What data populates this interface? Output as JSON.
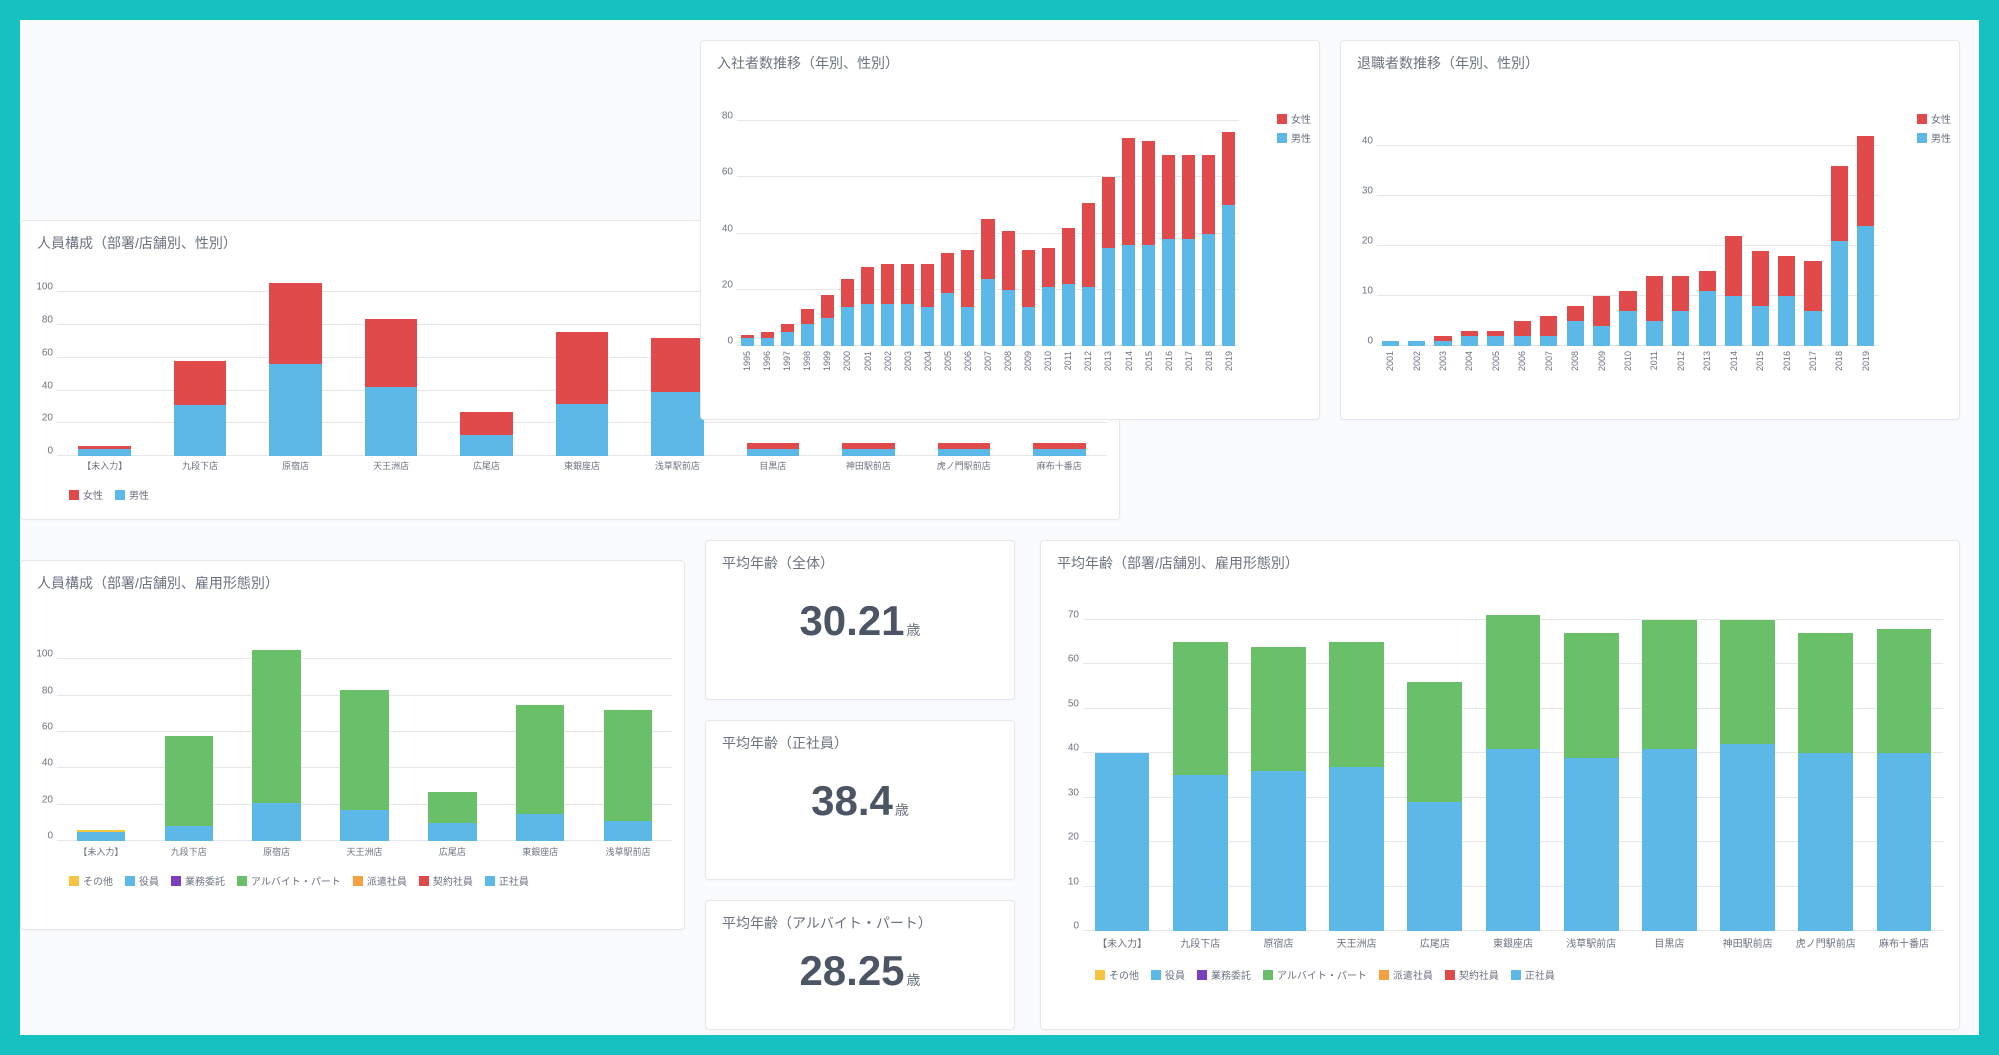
{
  "colors": {
    "female": "#e04a4a",
    "male": "#5cb8e6",
    "other": "#f5c542",
    "officer": "#5cb8e6",
    "outsourcing": "#7a3fbf",
    "parttime": "#6abf69",
    "dispatch": "#f5a142",
    "contract": "#e04a4a",
    "fulltime": "#5cb8e6",
    "grid": "#e5e7eb",
    "text": "#6b7280",
    "bg": "#ffffff",
    "outer": "#15c1c1"
  },
  "panel_gender": {
    "title": "人員構成（部署/店舗別、性別）",
    "ymax": 110,
    "ytick_step": 20,
    "categories": [
      "【未入力】",
      "九段下店",
      "原宿店",
      "天王洲店",
      "広尾店",
      "東銀座店",
      "浅草駅前店",
      "目黒店",
      "神田駅前店",
      "虎ノ門駅前店",
      "麻布十番店"
    ],
    "series": [
      {
        "name": "男性",
        "key": "male",
        "color": "#5cb8e6",
        "values": [
          4,
          31,
          56,
          42,
          13,
          32,
          39,
          4,
          4,
          4,
          4
        ]
      },
      {
        "name": "女性",
        "key": "female",
        "color": "#e04a4a",
        "values": [
          2,
          27,
          50,
          42,
          14,
          44,
          33,
          4,
          4,
          4,
          4
        ]
      }
    ],
    "legend": [
      {
        "label": "女性",
        "color": "#e04a4a"
      },
      {
        "label": "男性",
        "color": "#5cb8e6"
      }
    ]
  },
  "panel_hires": {
    "title": "入社者数推移（年別、性別）",
    "ymax": 80,
    "ytick_step": 20,
    "categories": [
      "1995",
      "1996",
      "1997",
      "1998",
      "1999",
      "2000",
      "2001",
      "2002",
      "2003",
      "2004",
      "2005",
      "2006",
      "2007",
      "2008",
      "2009",
      "2010",
      "2011",
      "2012",
      "2013",
      "2014",
      "2015",
      "2016",
      "2017",
      "2018",
      "2019"
    ],
    "series": [
      {
        "name": "男性",
        "key": "male",
        "color": "#5cb8e6",
        "values": [
          3,
          3,
          5,
          8,
          10,
          14,
          15,
          15,
          15,
          14,
          19,
          14,
          24,
          20,
          14,
          21,
          22,
          21,
          35,
          36,
          36,
          38,
          38,
          40,
          50
        ]
      },
      {
        "name": "女性",
        "key": "female",
        "color": "#e04a4a",
        "values": [
          1,
          2,
          3,
          5,
          8,
          10,
          13,
          14,
          14,
          15,
          14,
          20,
          21,
          21,
          20,
          14,
          20,
          30,
          25,
          38,
          37,
          30,
          30,
          28,
          26
        ]
      }
    ],
    "legend": [
      {
        "label": "女性",
        "color": "#e04a4a"
      },
      {
        "label": "男性",
        "color": "#5cb8e6"
      }
    ]
  },
  "panel_exits": {
    "title": "退職者数推移（年別、性別）",
    "ymax": 45,
    "ytick_step": 10,
    "categories": [
      "2001",
      "2002",
      "2003",
      "2004",
      "2005",
      "2006",
      "2007",
      "2008",
      "2009",
      "2010",
      "2011",
      "2012",
      "2013",
      "2014",
      "2015",
      "2016",
      "2017",
      "2018",
      "2019"
    ],
    "series": [
      {
        "name": "男性",
        "key": "male",
        "color": "#5cb8e6",
        "values": [
          1,
          1,
          1,
          2,
          2,
          2,
          2,
          5,
          4,
          7,
          5,
          7,
          11,
          10,
          8,
          10,
          7,
          21,
          24
        ]
      },
      {
        "name": "女性",
        "key": "female",
        "color": "#e04a4a",
        "values": [
          0,
          0,
          1,
          1,
          1,
          3,
          4,
          3,
          6,
          4,
          9,
          7,
          4,
          12,
          11,
          8,
          10,
          15,
          18
        ]
      }
    ],
    "legend": [
      {
        "label": "女性",
        "color": "#e04a4a"
      },
      {
        "label": "男性",
        "color": "#5cb8e6"
      }
    ]
  },
  "panel_emp": {
    "title": "人員構成（部署/店舗別、雇用形態別）",
    "ymax": 110,
    "ytick_step": 20,
    "categories": [
      "【未入力】",
      "九段下店",
      "原宿店",
      "天王洲店",
      "広尾店",
      "東銀座店",
      "浅草駅前店"
    ],
    "series": [
      {
        "name": "正社員",
        "key": "fulltime",
        "color": "#5cb8e6",
        "values": [
          0,
          8,
          21,
          17,
          10,
          15,
          11
        ]
      },
      {
        "name": "アルバイト・パート",
        "key": "parttime",
        "color": "#6abf69",
        "values": [
          0,
          50,
          84,
          66,
          17,
          60,
          61
        ]
      },
      {
        "name": "役員",
        "key": "officer",
        "color": "#5cb8e6",
        "values": [
          5,
          0,
          0,
          0,
          0,
          0,
          0
        ]
      },
      {
        "name": "その他",
        "key": "other",
        "color": "#f5c542",
        "values": [
          1,
          0,
          0,
          0,
          0,
          0,
          0
        ]
      }
    ],
    "legend": [
      {
        "label": "その他",
        "color": "#f5c542"
      },
      {
        "label": "役員",
        "color": "#5cb8e6"
      },
      {
        "label": "業務委託",
        "color": "#7a3fbf"
      },
      {
        "label": "アルバイト・パート",
        "color": "#6abf69"
      },
      {
        "label": "派遣社員",
        "color": "#f5a142"
      },
      {
        "label": "契約社員",
        "color": "#e04a4a"
      },
      {
        "label": "正社員",
        "color": "#5cb8e6"
      }
    ]
  },
  "kpi_all": {
    "title": "平均年齢（全体）",
    "value": "30.21",
    "suffix": "歳"
  },
  "kpi_full": {
    "title": "平均年齢（正社員）",
    "value": "38.4",
    "suffix": "歳"
  },
  "kpi_part": {
    "title": "平均年齢（アルバイト・パート）",
    "value": "28.25",
    "suffix": "歳"
  },
  "panel_age": {
    "title": "平均年齢（部署/店舗別、雇用形態別）",
    "ymax": 72,
    "ytick_step": 10,
    "categories": [
      "【未入力】",
      "九段下店",
      "原宿店",
      "天王洲店",
      "広尾店",
      "東銀座店",
      "浅草駅前店",
      "目黒店",
      "神田駅前店",
      "虎ノ門駅前店",
      "麻布十番店"
    ],
    "series": [
      {
        "name": "正社員",
        "key": "fulltime",
        "color": "#5cb8e6",
        "values": [
          0,
          35,
          36,
          37,
          29,
          41,
          39,
          41,
          42,
          40,
          40
        ]
      },
      {
        "name": "アルバイト・パート",
        "key": "parttime",
        "color": "#6abf69",
        "values": [
          0,
          30,
          28,
          28,
          27,
          30,
          28,
          29,
          28,
          27,
          28
        ]
      },
      {
        "name": "役員",
        "key": "officer",
        "color": "#5cb8e6",
        "values": [
          40,
          0,
          0,
          0,
          0,
          0,
          0,
          0,
          0,
          0,
          0
        ]
      }
    ],
    "legend": [
      {
        "label": "その他",
        "color": "#f5c542"
      },
      {
        "label": "役員",
        "color": "#5cb8e6"
      },
      {
        "label": "業務委託",
        "color": "#7a3fbf"
      },
      {
        "label": "アルバイト・パート",
        "color": "#6abf69"
      },
      {
        "label": "派遣社員",
        "color": "#f5a142"
      },
      {
        "label": "契約社員",
        "color": "#e04a4a"
      },
      {
        "label": "正社員",
        "color": "#5cb8e6"
      }
    ]
  }
}
